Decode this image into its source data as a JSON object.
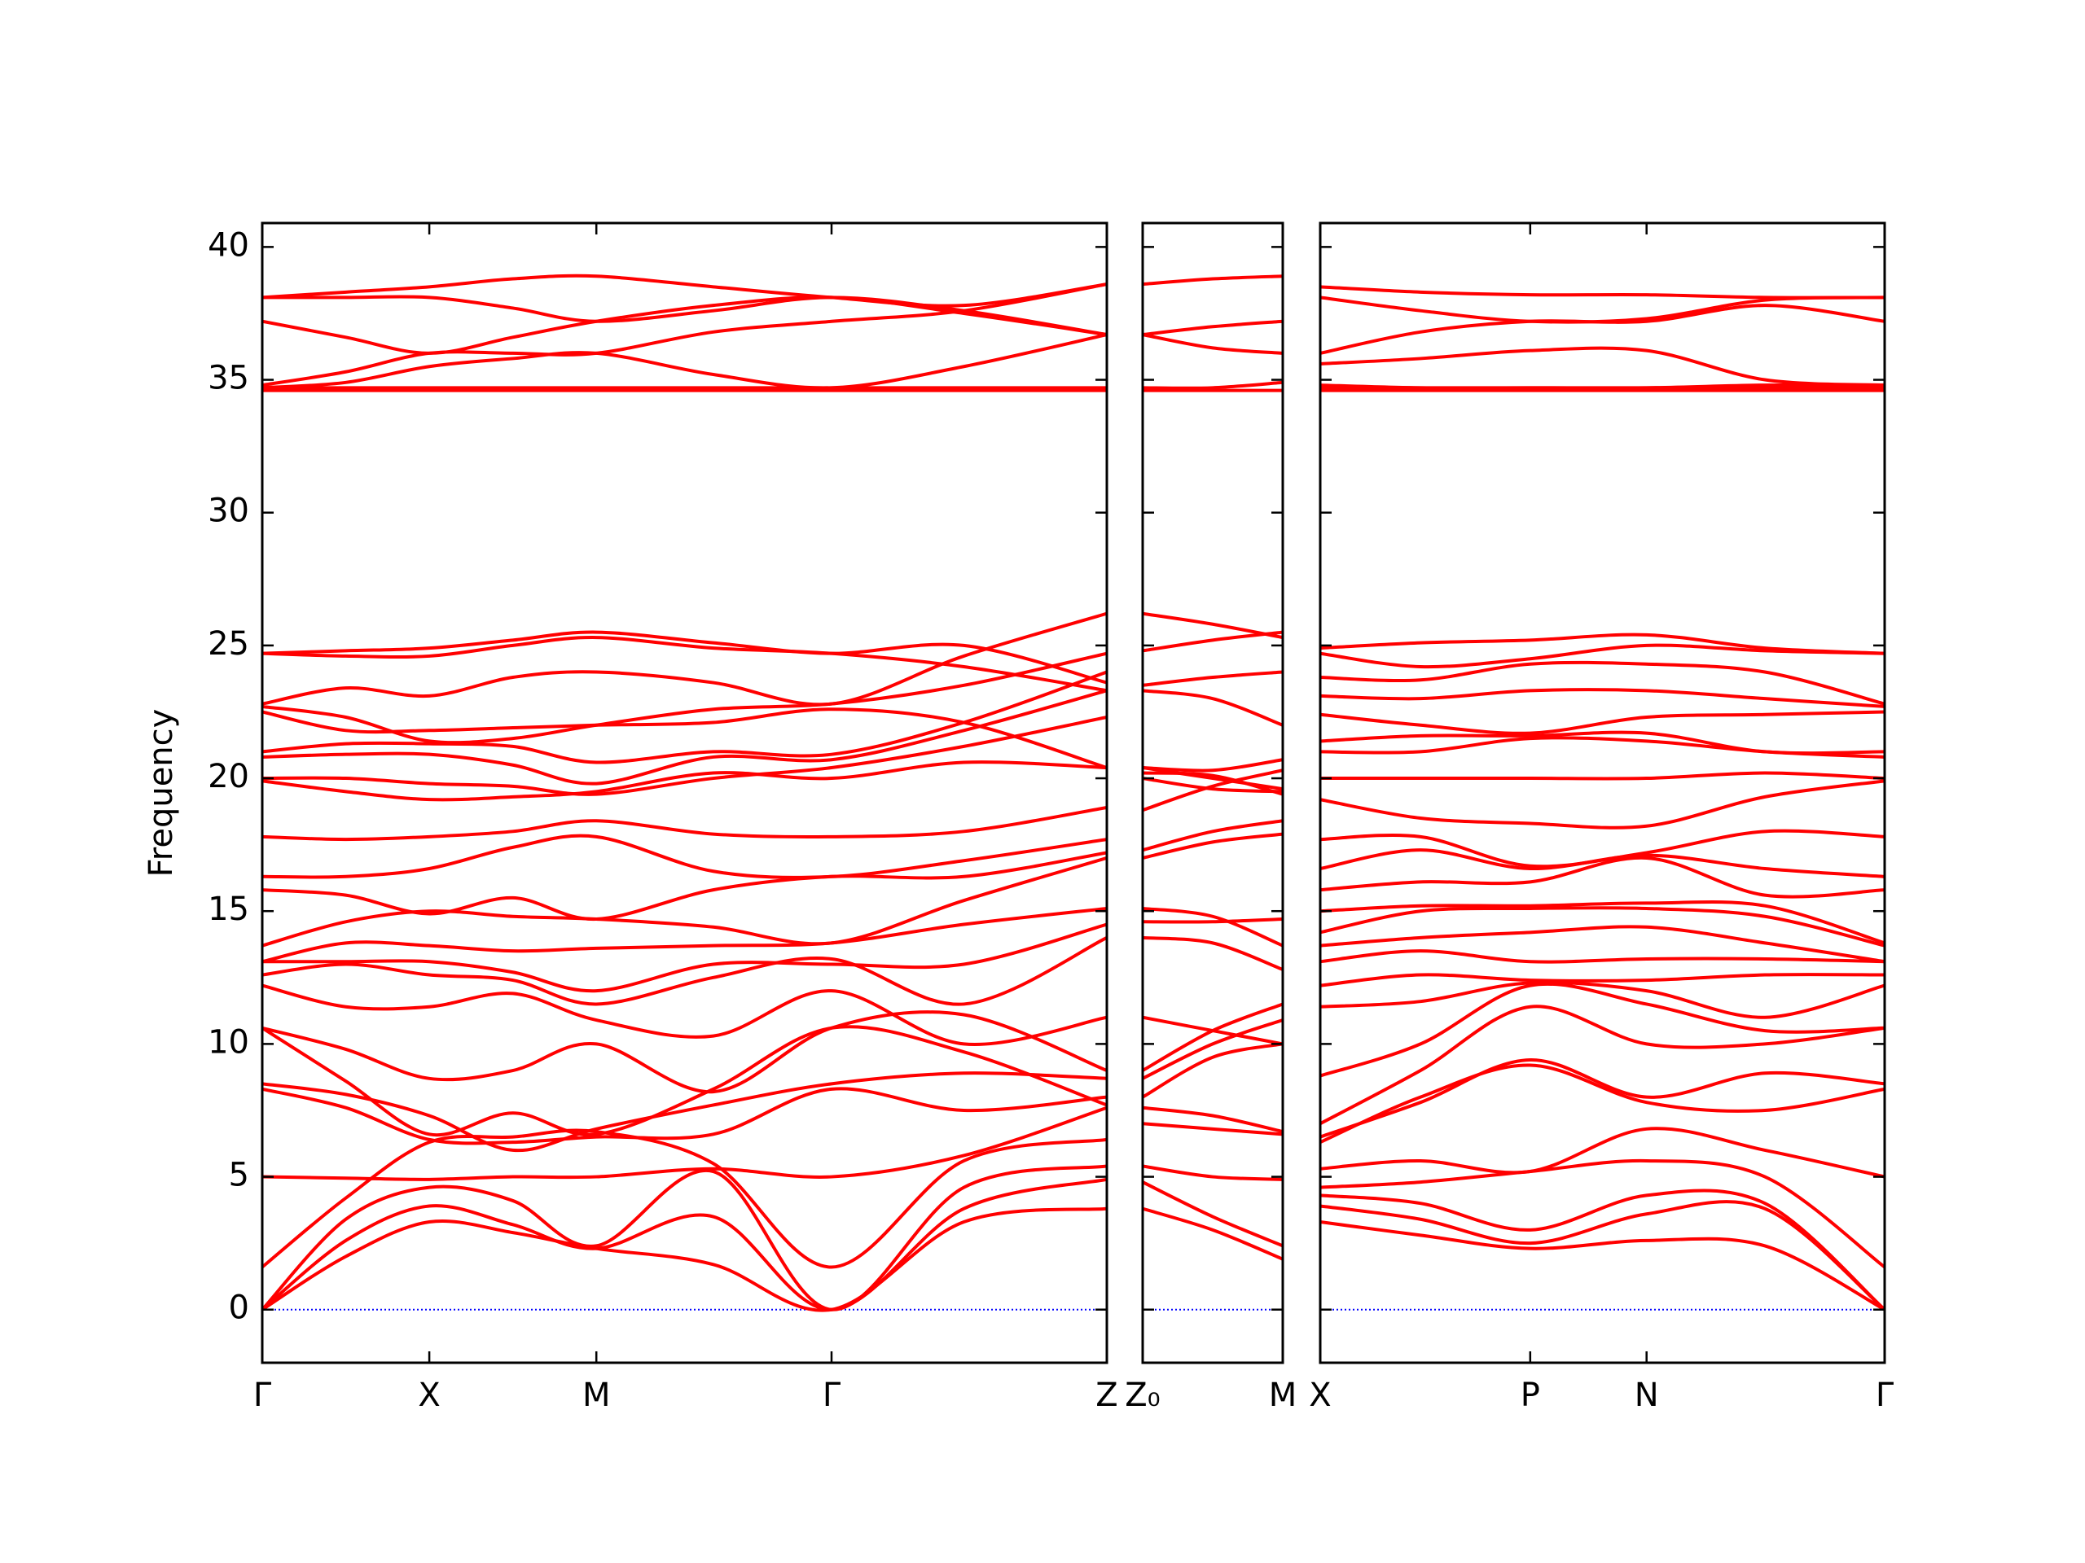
{
  "chart_data": [
    {
      "type": "line",
      "ylabel": "Frequency",
      "color": "#ff0000",
      "ytick_labels": true,
      "reference_line": {
        "value": 0,
        "color": "#0000ff"
      },
      "xlim": [
        0,
        2.528
      ],
      "ylim": [
        -2,
        40.9
      ],
      "xticks": [
        {
          "value": 0,
          "label": "Γ"
        },
        {
          "value": 0.5,
          "label": "X"
        },
        {
          "value": 1.0,
          "label": "M"
        },
        {
          "value": 1.704,
          "label": "Γ"
        },
        {
          "value": 2.528,
          "label": "Z"
        }
      ],
      "yticks": [
        0,
        5,
        10,
        15,
        20,
        25,
        30,
        35,
        40
      ],
      "x": [
        0,
        0.25,
        0.5,
        0.75,
        1.0,
        1.35,
        1.704,
        2.1,
        2.528
      ],
      "series": [
        {
          "values": [
            0,
            2.0,
            3.3,
            2.9,
            2.3,
            1.7,
            0,
            3.3,
            3.8
          ]
        },
        {
          "values": [
            0,
            2.6,
            3.9,
            3.2,
            2.3,
            3.5,
            0,
            3.8,
            4.9
          ]
        },
        {
          "values": [
            0,
            3.4,
            4.6,
            4.1,
            2.4,
            5.2,
            0,
            4.6,
            5.4
          ]
        },
        {
          "values": [
            1.6,
            4.2,
            6.3,
            6.5,
            6.7,
            5.5,
            1.6,
            5.6,
            6.4
          ]
        },
        {
          "values": [
            5.0,
            4.95,
            4.9,
            5.0,
            5.0,
            5.3,
            5.0,
            5.8,
            7.6
          ]
        },
        {
          "values": [
            8.3,
            7.6,
            6.4,
            6.3,
            6.5,
            6.6,
            8.3,
            7.5,
            8.0
          ]
        },
        {
          "values": [
            8.5,
            8.1,
            7.3,
            6.0,
            6.8,
            7.7,
            8.5,
            8.9,
            8.7
          ]
        },
        {
          "values": [
            10.6,
            8.6,
            6.6,
            7.4,
            6.6,
            8.3,
            10.6,
            9.7,
            7.7
          ]
        },
        {
          "values": [
            10.6,
            9.8,
            8.7,
            9.0,
            10.0,
            8.2,
            10.6,
            11.1,
            9.0
          ]
        },
        {
          "values": [
            12.2,
            11.4,
            11.4,
            11.9,
            10.9,
            10.3,
            12.0,
            10.0,
            11.0
          ]
        },
        {
          "values": [
            12.6,
            13.0,
            12.6,
            12.4,
            11.5,
            12.5,
            13.2,
            11.5,
            14.0
          ]
        },
        {
          "values": [
            13.1,
            13.1,
            13.1,
            12.7,
            12.0,
            13.0,
            13.0,
            13.0,
            14.5
          ]
        },
        {
          "values": [
            13.1,
            13.8,
            13.7,
            13.5,
            13.6,
            13.7,
            13.8,
            14.5,
            15.1
          ]
        },
        {
          "values": [
            13.7,
            14.6,
            15.0,
            14.8,
            14.7,
            14.4,
            13.8,
            15.4,
            17.0
          ]
        },
        {
          "values": [
            15.8,
            15.6,
            14.9,
            15.5,
            14.7,
            15.8,
            16.3,
            16.3,
            17.2
          ]
        },
        {
          "values": [
            16.3,
            16.3,
            16.6,
            17.4,
            17.8,
            16.5,
            16.3,
            16.9,
            17.7
          ]
        },
        {
          "values": [
            17.8,
            17.7,
            17.8,
            18.0,
            18.4,
            17.9,
            17.8,
            18.0,
            18.9
          ]
        },
        {
          "values": [
            19.9,
            19.5,
            19.2,
            19.3,
            19.5,
            20.2,
            20.0,
            20.6,
            20.4
          ]
        },
        {
          "values": [
            20.0,
            20.0,
            19.8,
            19.7,
            19.4,
            20.0,
            20.4,
            21.2,
            22.3
          ]
        },
        {
          "values": [
            20.8,
            20.9,
            20.9,
            20.5,
            19.8,
            20.8,
            20.7,
            21.8,
            23.3
          ]
        },
        {
          "values": [
            21.0,
            21.3,
            21.3,
            21.2,
            20.6,
            21.0,
            20.9,
            22.1,
            24.0
          ]
        },
        {
          "values": [
            22.5,
            21.8,
            21.8,
            21.9,
            22.0,
            22.1,
            22.6,
            22.1,
            20.4
          ]
        },
        {
          "values": [
            22.7,
            22.3,
            21.4,
            21.5,
            22.0,
            22.6,
            22.8,
            23.5,
            24.7
          ]
        },
        {
          "values": [
            22.8,
            23.4,
            23.1,
            23.8,
            24.0,
            23.6,
            22.8,
            24.6,
            26.2
          ]
        },
        {
          "values": [
            24.7,
            24.8,
            24.9,
            25.2,
            25.5,
            25.1,
            24.7,
            25.0,
            23.6
          ]
        },
        {
          "values": [
            24.7,
            24.6,
            24.6,
            25.0,
            25.3,
            24.9,
            24.7,
            24.2,
            23.3
          ]
        },
        {
          "values": [
            34.6,
            34.6,
            34.6,
            34.6,
            34.6,
            34.6,
            34.6,
            34.6,
            34.6
          ]
        },
        {
          "values": [
            34.7,
            34.7,
            34.7,
            34.7,
            34.7,
            34.7,
            34.7,
            34.7,
            34.7
          ]
        },
        {
          "values": [
            34.7,
            34.9,
            35.5,
            35.8,
            36.0,
            35.2,
            34.7,
            35.5,
            36.7
          ]
        },
        {
          "values": [
            34.8,
            35.3,
            36.0,
            36.0,
            36.0,
            36.8,
            37.2,
            37.6,
            38.6
          ]
        },
        {
          "values": [
            37.2,
            36.6,
            36.0,
            36.6,
            37.2,
            37.8,
            38.1,
            37.5,
            36.7
          ]
        },
        {
          "values": [
            38.1,
            38.3,
            38.5,
            38.8,
            38.9,
            38.5,
            38.1,
            37.8,
            38.6
          ]
        },
        {
          "values": [
            38.1,
            38.1,
            38.1,
            37.7,
            37.2,
            37.6,
            38.1,
            37.6,
            36.7
          ]
        }
      ]
    },
    {
      "type": "line",
      "color": "#ff0000",
      "ytick_labels": false,
      "reference_line": {
        "value": 0,
        "color": "#0000ff"
      },
      "xlim": [
        0,
        0.42
      ],
      "ylim": [
        -2,
        40.9
      ],
      "xticks": [
        {
          "value": 0,
          "label": "Z₀"
        },
        {
          "value": 0.42,
          "label": "M"
        }
      ],
      "yticks": [
        0,
        5,
        10,
        15,
        20,
        25,
        30,
        35,
        40
      ],
      "x": [
        0,
        0.21,
        0.42
      ],
      "series": [
        {
          "values": [
            3.8,
            3.0,
            1.9
          ]
        },
        {
          "values": [
            4.8,
            3.5,
            2.4
          ]
        },
        {
          "values": [
            5.4,
            5.0,
            4.9
          ]
        },
        {
          "values": [
            7.0,
            6.8,
            6.6
          ]
        },
        {
          "values": [
            7.6,
            7.3,
            6.7
          ]
        },
        {
          "values": [
            8.0,
            9.5,
            10.0
          ]
        },
        {
          "values": [
            8.7,
            10.0,
            10.9
          ]
        },
        {
          "values": [
            9.0,
            10.5,
            11.5
          ]
        },
        {
          "values": [
            11.0,
            10.5,
            10.0
          ]
        },
        {
          "values": [
            14.0,
            13.8,
            12.8
          ]
        },
        {
          "values": [
            14.6,
            14.6,
            14.7
          ]
        },
        {
          "values": [
            15.1,
            14.8,
            13.7
          ]
        },
        {
          "values": [
            17.0,
            17.6,
            17.9
          ]
        },
        {
          "values": [
            17.3,
            18.0,
            18.4
          ]
        },
        {
          "values": [
            18.8,
            19.7,
            20.3
          ]
        },
        {
          "values": [
            20.0,
            19.6,
            19.5
          ]
        },
        {
          "values": [
            20.2,
            20.1,
            19.4
          ]
        },
        {
          "values": [
            20.4,
            20.0,
            19.6
          ]
        },
        {
          "values": [
            20.4,
            20.3,
            20.7
          ]
        },
        {
          "values": [
            23.3,
            23.0,
            22.0
          ]
        },
        {
          "values": [
            23.5,
            23.8,
            24.0
          ]
        },
        {
          "values": [
            24.8,
            25.2,
            25.5
          ]
        },
        {
          "values": [
            26.2,
            25.8,
            25.3
          ]
        },
        {
          "values": [
            34.6,
            34.6,
            34.6
          ]
        },
        {
          "values": [
            34.7,
            34.7,
            34.9
          ]
        },
        {
          "values": [
            36.7,
            36.2,
            36.0
          ]
        },
        {
          "values": [
            36.7,
            37.0,
            37.2
          ]
        },
        {
          "values": [
            38.6,
            38.8,
            38.9
          ]
        }
      ]
    },
    {
      "type": "line",
      "color": "#ff0000",
      "ytick_labels": false,
      "reference_line": {
        "value": 0,
        "color": "#0000ff"
      },
      "xlim": [
        0,
        1.688
      ],
      "ylim": [
        -2,
        40.9
      ],
      "xticks": [
        {
          "value": 0,
          "label": "X"
        },
        {
          "value": 0.628,
          "label": "P"
        },
        {
          "value": 0.976,
          "label": "N"
        },
        {
          "value": 1.688,
          "label": "Γ"
        }
      ],
      "yticks": [
        0,
        5,
        10,
        15,
        20,
        25,
        30,
        35,
        40
      ],
      "x": [
        0,
        0.3,
        0.628,
        0.976,
        1.33,
        1.688
      ],
      "series": [
        {
          "values": [
            3.3,
            2.8,
            2.3,
            2.6,
            2.4,
            0
          ]
        },
        {
          "values": [
            3.9,
            3.4,
            2.5,
            3.6,
            3.8,
            0
          ]
        },
        {
          "values": [
            4.3,
            4.0,
            3.0,
            4.3,
            4.0,
            0
          ]
        },
        {
          "values": [
            4.6,
            4.8,
            5.2,
            5.6,
            5.0,
            1.6
          ]
        },
        {
          "values": [
            5.3,
            5.6,
            5.2,
            6.8,
            6.0,
            5.0
          ]
        },
        {
          "values": [
            6.3,
            8.0,
            9.2,
            7.8,
            7.5,
            8.3
          ]
        },
        {
          "values": [
            6.5,
            7.8,
            9.4,
            8.0,
            8.9,
            8.5
          ]
        },
        {
          "values": [
            7.0,
            9.0,
            11.4,
            10.0,
            10.0,
            10.6
          ]
        },
        {
          "values": [
            8.8,
            10.0,
            12.2,
            11.5,
            10.5,
            10.6
          ]
        },
        {
          "values": [
            11.4,
            11.6,
            12.3,
            12.0,
            11.0,
            12.2
          ]
        },
        {
          "values": [
            12.2,
            12.6,
            12.4,
            12.4,
            12.6,
            12.6
          ]
        },
        {
          "values": [
            13.1,
            13.5,
            13.1,
            13.2,
            13.2,
            13.1
          ]
        },
        {
          "values": [
            13.7,
            14.0,
            14.2,
            14.4,
            13.8,
            13.1
          ]
        },
        {
          "values": [
            14.2,
            15.0,
            15.1,
            15.1,
            14.8,
            13.7
          ]
        },
        {
          "values": [
            15.0,
            15.2,
            15.2,
            15.3,
            15.2,
            13.8
          ]
        },
        {
          "values": [
            15.8,
            16.1,
            16.1,
            17.0,
            15.6,
            15.8
          ]
        },
        {
          "values": [
            16.6,
            17.3,
            16.6,
            17.1,
            16.6,
            16.3
          ]
        },
        {
          "values": [
            17.7,
            17.8,
            16.7,
            17.2,
            18.0,
            17.8
          ]
        },
        {
          "values": [
            19.2,
            18.5,
            18.3,
            18.2,
            19.3,
            19.9
          ]
        },
        {
          "values": [
            20.0,
            20.0,
            20.0,
            20.0,
            20.2,
            20.0
          ]
        },
        {
          "values": [
            21.0,
            21.0,
            21.5,
            21.4,
            21.0,
            20.8
          ]
        },
        {
          "values": [
            21.4,
            21.6,
            21.6,
            21.7,
            21.0,
            21.0
          ]
        },
        {
          "values": [
            22.4,
            22.0,
            21.7,
            22.3,
            22.4,
            22.5
          ]
        },
        {
          "values": [
            23.1,
            23.0,
            23.3,
            23.3,
            23.0,
            22.7
          ]
        },
        {
          "values": [
            23.8,
            23.7,
            24.3,
            24.3,
            24.0,
            22.8
          ]
        },
        {
          "values": [
            24.7,
            24.2,
            24.5,
            25.0,
            24.8,
            24.7
          ]
        },
        {
          "values": [
            24.9,
            25.1,
            25.2,
            25.4,
            24.9,
            24.7
          ]
        },
        {
          "values": [
            34.6,
            34.6,
            34.6,
            34.6,
            34.6,
            34.6
          ]
        },
        {
          "values": [
            34.7,
            34.7,
            34.7,
            34.7,
            34.7,
            34.7
          ]
        },
        {
          "values": [
            34.8,
            34.7,
            34.7,
            34.7,
            34.8,
            34.8
          ]
        },
        {
          "values": [
            35.6,
            35.8,
            36.1,
            36.1,
            35.0,
            34.8
          ]
        },
        {
          "values": [
            36.0,
            36.8,
            37.2,
            37.2,
            37.8,
            37.2
          ]
        },
        {
          "values": [
            38.1,
            37.6,
            37.2,
            37.3,
            38.0,
            38.1
          ]
        },
        {
          "values": [
            38.5,
            38.3,
            38.2,
            38.2,
            38.1,
            38.1
          ]
        }
      ]
    }
  ]
}
